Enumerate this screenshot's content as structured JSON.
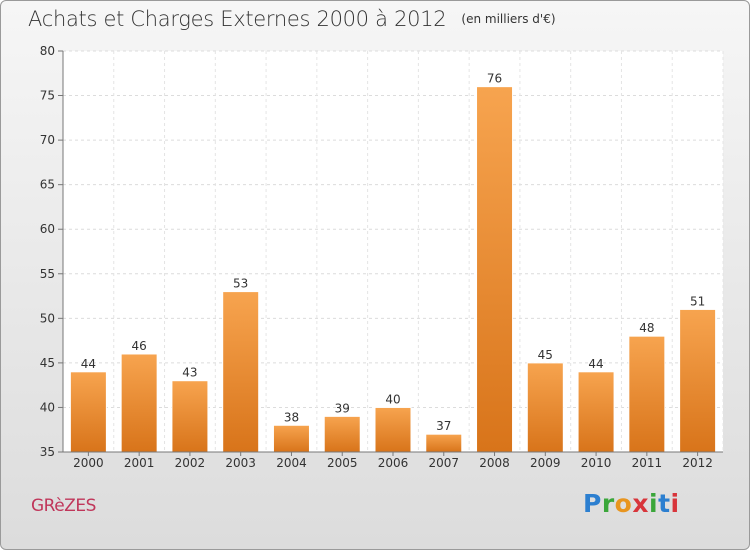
{
  "chart_data": {
    "type": "bar",
    "title": "Achats et Charges Externes 2000 à 2012",
    "subtitle": "(en milliers d'€)",
    "categories": [
      "2000",
      "2001",
      "2002",
      "2003",
      "2004",
      "2005",
      "2006",
      "2007",
      "2008",
      "2009",
      "2010",
      "2011",
      "2012"
    ],
    "values": [
      44,
      46,
      43,
      53,
      38,
      39,
      40,
      37,
      76,
      45,
      44,
      48,
      51
    ],
    "ylim": [
      35,
      80
    ],
    "yticks": [
      35,
      40,
      45,
      50,
      55,
      60,
      65,
      70,
      75,
      80
    ],
    "grid": true,
    "bar_color": "#f0932e"
  },
  "commune": "GRèZES",
  "logo": {
    "text": "Proxiti"
  }
}
